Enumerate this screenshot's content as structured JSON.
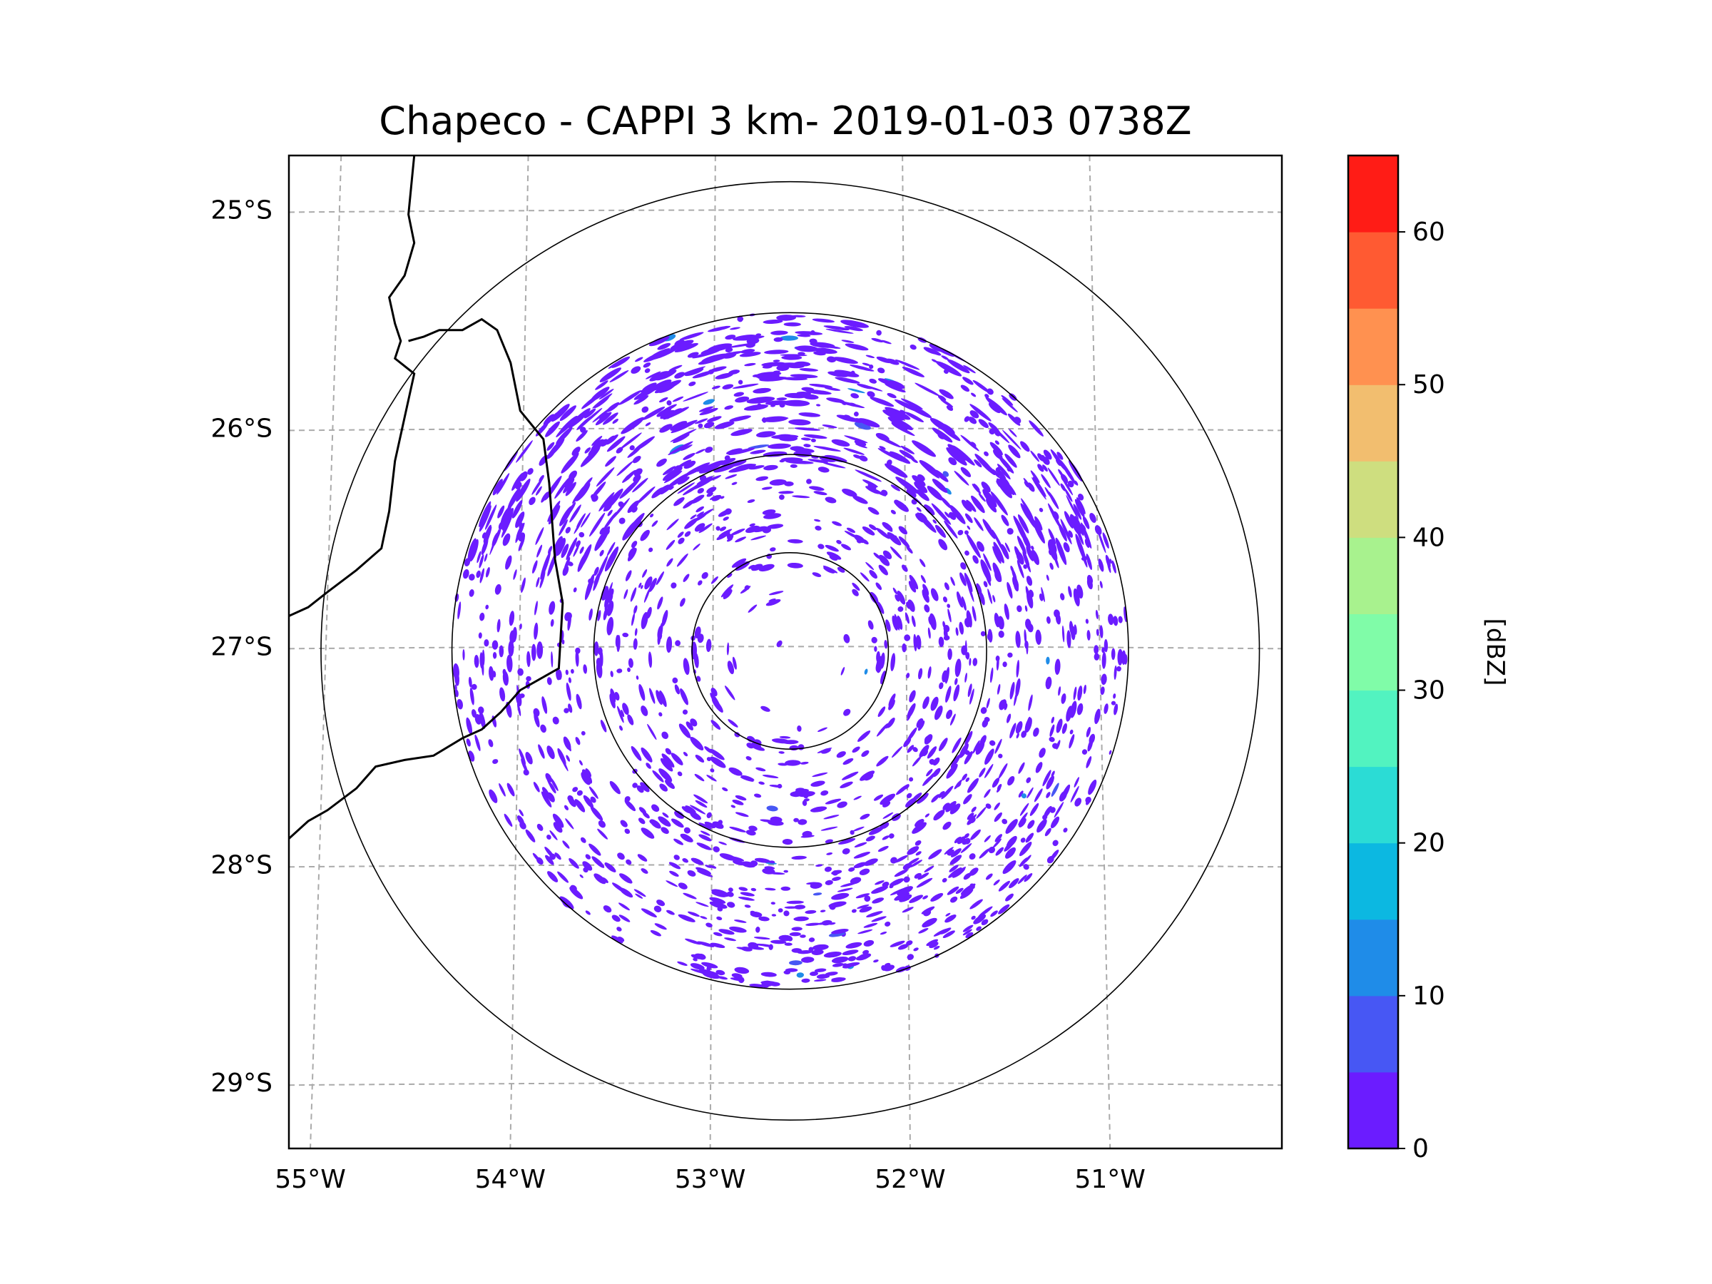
{
  "chart_data": {
    "type": "heatmap",
    "title": "Chapeco - CAPPI 3 km- 2019-01-03 0738Z",
    "xlabel": "",
    "ylabel": "",
    "x_ticks": [
      "55°W",
      "54°W",
      "53°W",
      "52°W",
      "51°W"
    ],
    "y_ticks": [
      "25°S",
      "26°S",
      "27°S",
      "28°S",
      "29°S"
    ],
    "lon_range": [
      -55.2,
      -50.05
    ],
    "lat_range": [
      -29.3,
      -24.75
    ],
    "grid": true,
    "radar_center": {
      "lon": -52.6,
      "lat": -27.02
    },
    "range_ring_radii_deg_lat": [
      0.45,
      0.9,
      1.55,
      2.15
    ],
    "colorbar": {
      "label": "[dBZ]",
      "ticks": [
        0,
        10,
        20,
        30,
        40,
        50,
        60
      ],
      "tick_labels": [
        "0",
        "10",
        "20",
        "30",
        "40",
        "50",
        "60"
      ],
      "levels": [
        0,
        5,
        10,
        15,
        20,
        25,
        30,
        35,
        40,
        45,
        50,
        55,
        60,
        65
      ],
      "colors": [
        "#6b1cff",
        "#4757f4",
        "#1f8ce8",
        "#0cb8e1",
        "#2bdcd5",
        "#52f3c0",
        "#80fca8",
        "#a8f28e",
        "#cede7f",
        "#f2be6f",
        "#ff9150",
        "#ff5a32",
        "#ff1c16"
      ]
    },
    "coastline": [
      [
        -54.55,
        -24.75
      ],
      [
        -54.58,
        -25.02
      ],
      [
        -54.55,
        -25.15
      ],
      [
        -54.6,
        -25.3
      ],
      [
        -54.68,
        -25.4
      ],
      [
        -54.65,
        -25.52
      ],
      [
        -54.62,
        -25.6
      ],
      [
        -54.65,
        -25.68
      ],
      [
        -54.55,
        -25.75
      ],
      [
        -54.6,
        -25.95
      ],
      [
        -54.65,
        -26.15
      ],
      [
        -54.68,
        -26.38
      ],
      [
        -54.72,
        -26.55
      ],
      [
        -54.85,
        -26.65
      ],
      [
        -55.0,
        -26.75
      ],
      [
        -55.1,
        -26.82
      ],
      [
        -55.2,
        -26.86
      ]
    ],
    "border_argentina_brazil": [
      [
        -54.58,
        -25.6
      ],
      [
        -54.5,
        -25.58
      ],
      [
        -54.42,
        -25.55
      ],
      [
        -54.3,
        -25.55
      ],
      [
        -54.2,
        -25.5
      ],
      [
        -54.12,
        -25.55
      ],
      [
        -54.05,
        -25.7
      ],
      [
        -54.0,
        -25.92
      ],
      [
        -53.88,
        -26.05
      ],
      [
        -53.85,
        -26.25
      ],
      [
        -53.82,
        -26.6
      ],
      [
        -53.78,
        -26.8
      ],
      [
        -53.8,
        -27.1
      ],
      [
        -53.9,
        -27.15
      ],
      [
        -54.0,
        -27.2
      ],
      [
        -54.1,
        -27.3
      ],
      [
        -54.2,
        -27.38
      ],
      [
        -54.3,
        -27.42
      ],
      [
        -54.45,
        -27.5
      ],
      [
        -54.6,
        -27.52
      ],
      [
        -54.75,
        -27.55
      ],
      [
        -54.85,
        -27.65
      ],
      [
        -55.0,
        -27.75
      ],
      [
        -55.1,
        -27.8
      ],
      [
        -55.2,
        -27.88
      ]
    ],
    "echo_summary": {
      "dominant_class_dbz": "0-5",
      "notes": "Scattered weak echoes throughout radar coverage, densest in the northern and southeastern sectors."
    }
  }
}
